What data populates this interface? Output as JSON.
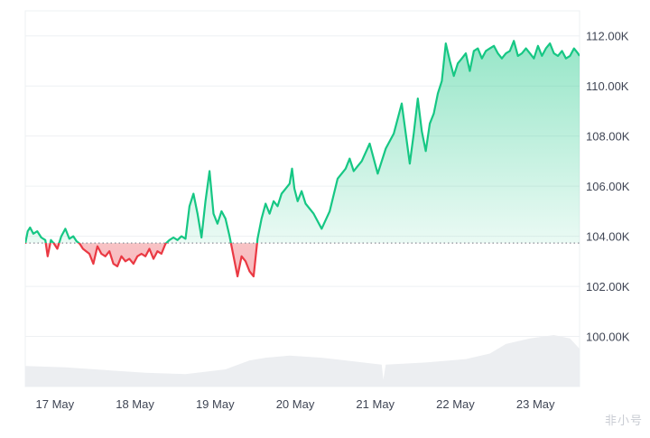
{
  "watermark": "非小号",
  "chart_data": {
    "type": "area",
    "baseline": 103730,
    "ylim": [
      98000,
      113000
    ],
    "y_ticks": [
      100000,
      102000,
      104000,
      106000,
      108000,
      110000,
      112000
    ],
    "y_tick_labels": [
      "100.00K",
      "102.00K",
      "104.00K",
      "106.00K",
      "108.00K",
      "110.00K",
      "112.00K"
    ],
    "x_ticks": [
      0.37,
      1.37,
      2.37,
      3.37,
      4.37,
      5.37,
      6.37
    ],
    "x_tick_labels": [
      "17 May",
      "18 May",
      "19 May",
      "20 May",
      "21 May",
      "22 May",
      "23 May"
    ],
    "xlim": [
      0,
      6.92
    ],
    "colors": {
      "up": "#16c784",
      "down": "#ea3943",
      "volume": "#eceef1",
      "grid": "#eef0f3",
      "baseline": "#8a8f99"
    },
    "price_series": {
      "x": [
        0,
        0.03,
        0.06,
        0.1,
        0.15,
        0.2,
        0.25,
        0.28,
        0.32,
        0.36,
        0.4,
        0.45,
        0.5,
        0.55,
        0.6,
        0.64,
        0.68,
        0.72,
        0.76,
        0.8,
        0.85,
        0.9,
        0.95,
        1.0,
        1.05,
        1.1,
        1.15,
        1.2,
        1.25,
        1.3,
        1.35,
        1.4,
        1.45,
        1.5,
        1.55,
        1.6,
        1.65,
        1.7,
        1.75,
        1.8,
        1.85,
        1.9,
        1.95,
        2.0,
        2.05,
        2.1,
        2.15,
        2.2,
        2.25,
        2.3,
        2.35,
        2.4,
        2.45,
        2.5,
        2.55,
        2.6,
        2.65,
        2.7,
        2.75,
        2.8,
        2.85,
        2.9,
        2.95,
        3.0,
        3.05,
        3.1,
        3.15,
        3.2,
        3.25,
        3.3,
        3.33,
        3.36,
        3.4,
        3.45,
        3.5,
        3.6,
        3.7,
        3.8,
        3.9,
        4.0,
        4.05,
        4.1,
        4.15,
        4.2,
        4.3,
        4.4,
        4.5,
        4.6,
        4.7,
        4.8,
        4.85,
        4.9,
        4.95,
        5.0,
        5.05,
        5.1,
        5.15,
        5.2,
        5.25,
        5.3,
        5.35,
        5.4,
        5.45,
        5.5,
        5.55,
        5.6,
        5.65,
        5.7,
        5.75,
        5.8,
        5.85,
        5.9,
        5.95,
        6.0,
        6.05,
        6.1,
        6.15,
        6.2,
        6.25,
        6.3,
        6.35,
        6.4,
        6.45,
        6.5,
        6.55,
        6.6,
        6.65,
        6.7,
        6.75,
        6.8,
        6.85,
        6.9,
        6.92
      ],
      "y": [
        103700,
        104200,
        104350,
        104100,
        104200,
        103950,
        103850,
        103200,
        103850,
        103700,
        103500,
        104000,
        104300,
        103900,
        104000,
        103800,
        103700,
        103500,
        103400,
        103300,
        102900,
        103600,
        103300,
        103200,
        103400,
        102900,
        102800,
        103200,
        103000,
        103100,
        102900,
        103200,
        103300,
        103200,
        103500,
        103100,
        103400,
        103300,
        103700,
        103850,
        103950,
        103850,
        104000,
        103900,
        105200,
        105700,
        104900,
        103950,
        105400,
        106600,
        104900,
        104500,
        105000,
        104700,
        104000,
        103200,
        102400,
        103200,
        103000,
        102600,
        102400,
        103900,
        104700,
        105300,
        104900,
        105400,
        105200,
        105700,
        105900,
        106100,
        106700,
        105900,
        105400,
        105800,
        105300,
        104900,
        104300,
        105000,
        106300,
        106700,
        107100,
        106600,
        106800,
        107000,
        107700,
        106500,
        107500,
        108100,
        109300,
        106900,
        108100,
        109500,
        108200,
        107400,
        108500,
        108900,
        109700,
        110200,
        111700,
        111000,
        110400,
        110900,
        111100,
        111300,
        110600,
        111400,
        111500,
        111100,
        111400,
        111500,
        111600,
        111300,
        111100,
        111300,
        111400,
        111800,
        111200,
        111300,
        111500,
        111300,
        111100,
        111600,
        111200,
        111500,
        111700,
        111300,
        111200,
        111400,
        111100,
        111200,
        111500,
        111300,
        111200
      ]
    },
    "volume_series": {
      "x": [
        0,
        0.5,
        1.0,
        1.5,
        2.0,
        2.5,
        2.8,
        3.0,
        3.3,
        3.7,
        4.0,
        4.3,
        4.45,
        4.47,
        4.5,
        5.0,
        5.5,
        5.8,
        6.0,
        6.3,
        6.6,
        6.8,
        6.92
      ],
      "y": [
        0.3,
        0.28,
        0.24,
        0.2,
        0.18,
        0.25,
        0.38,
        0.42,
        0.45,
        0.42,
        0.38,
        0.34,
        0.32,
        0.1,
        0.32,
        0.35,
        0.4,
        0.48,
        0.62,
        0.7,
        0.75,
        0.7,
        0.55
      ]
    }
  }
}
